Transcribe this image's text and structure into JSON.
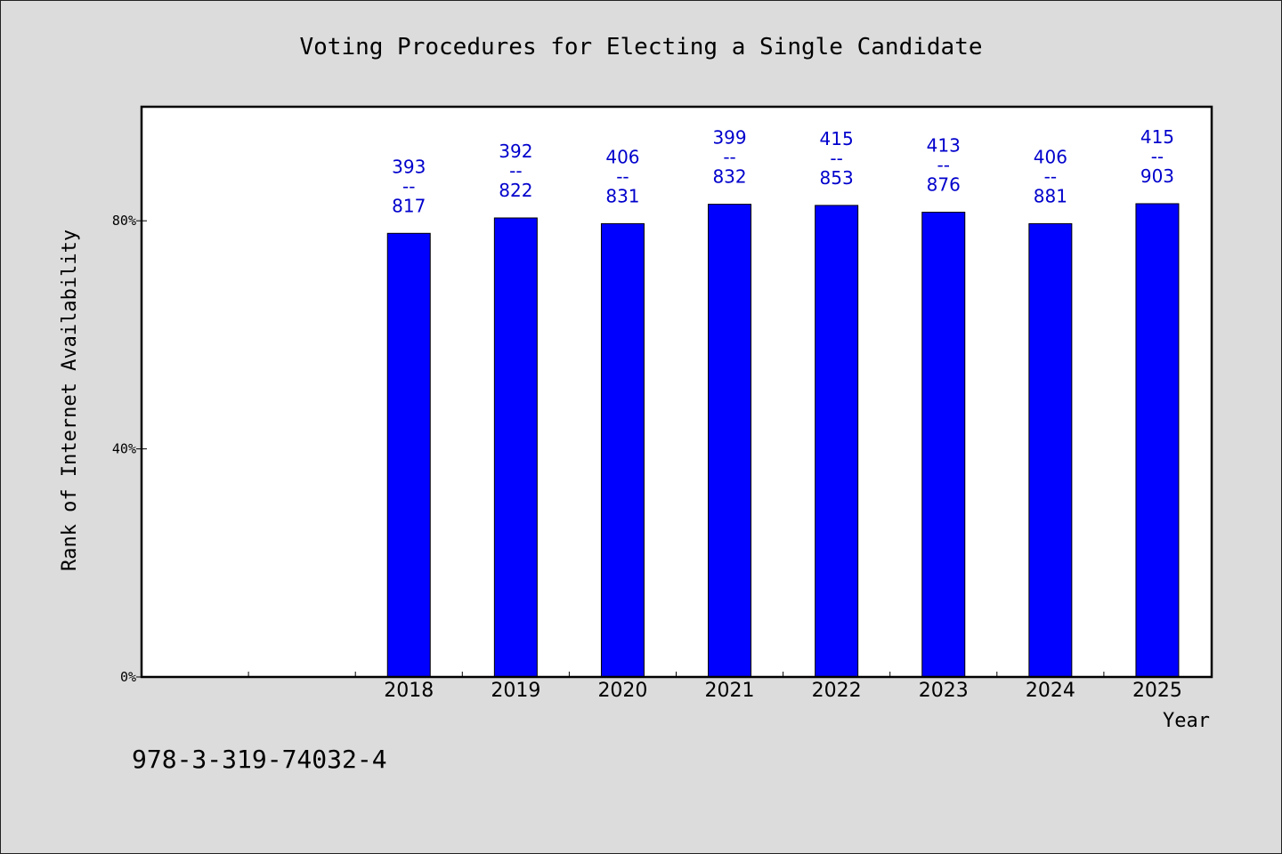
{
  "chart_data": {
    "type": "bar",
    "title": "Voting Procedures for Electing a Single Candidate",
    "xlabel": "Year",
    "ylabel": "Rank of Internet Availability",
    "categories": [
      "",
      "",
      "2018",
      "2019",
      "2020",
      "2021",
      "2022",
      "2023",
      "2024",
      "2025"
    ],
    "values": [
      null,
      null,
      77.8,
      80.5,
      79.5,
      82.9,
      82.7,
      81.5,
      79.5,
      83.0
    ],
    "label_top": [
      "",
      "",
      "393",
      "392",
      "406",
      "399",
      "415",
      "413",
      "406",
      "415"
    ],
    "label_sep": "--",
    "label_bottom": [
      "",
      "",
      "817",
      "822",
      "831",
      "832",
      "853",
      "876",
      "881",
      "903"
    ],
    "ylim": [
      0,
      100
    ],
    "yticks": [
      0,
      40,
      80
    ],
    "ytick_labels": [
      "0%",
      "40%",
      "80%"
    ],
    "grid": false,
    "legend": "none",
    "bar_color": "#0000ff",
    "label_color": "#0000cc"
  },
  "footer": {
    "isbn": "978-3-319-74032-4"
  }
}
